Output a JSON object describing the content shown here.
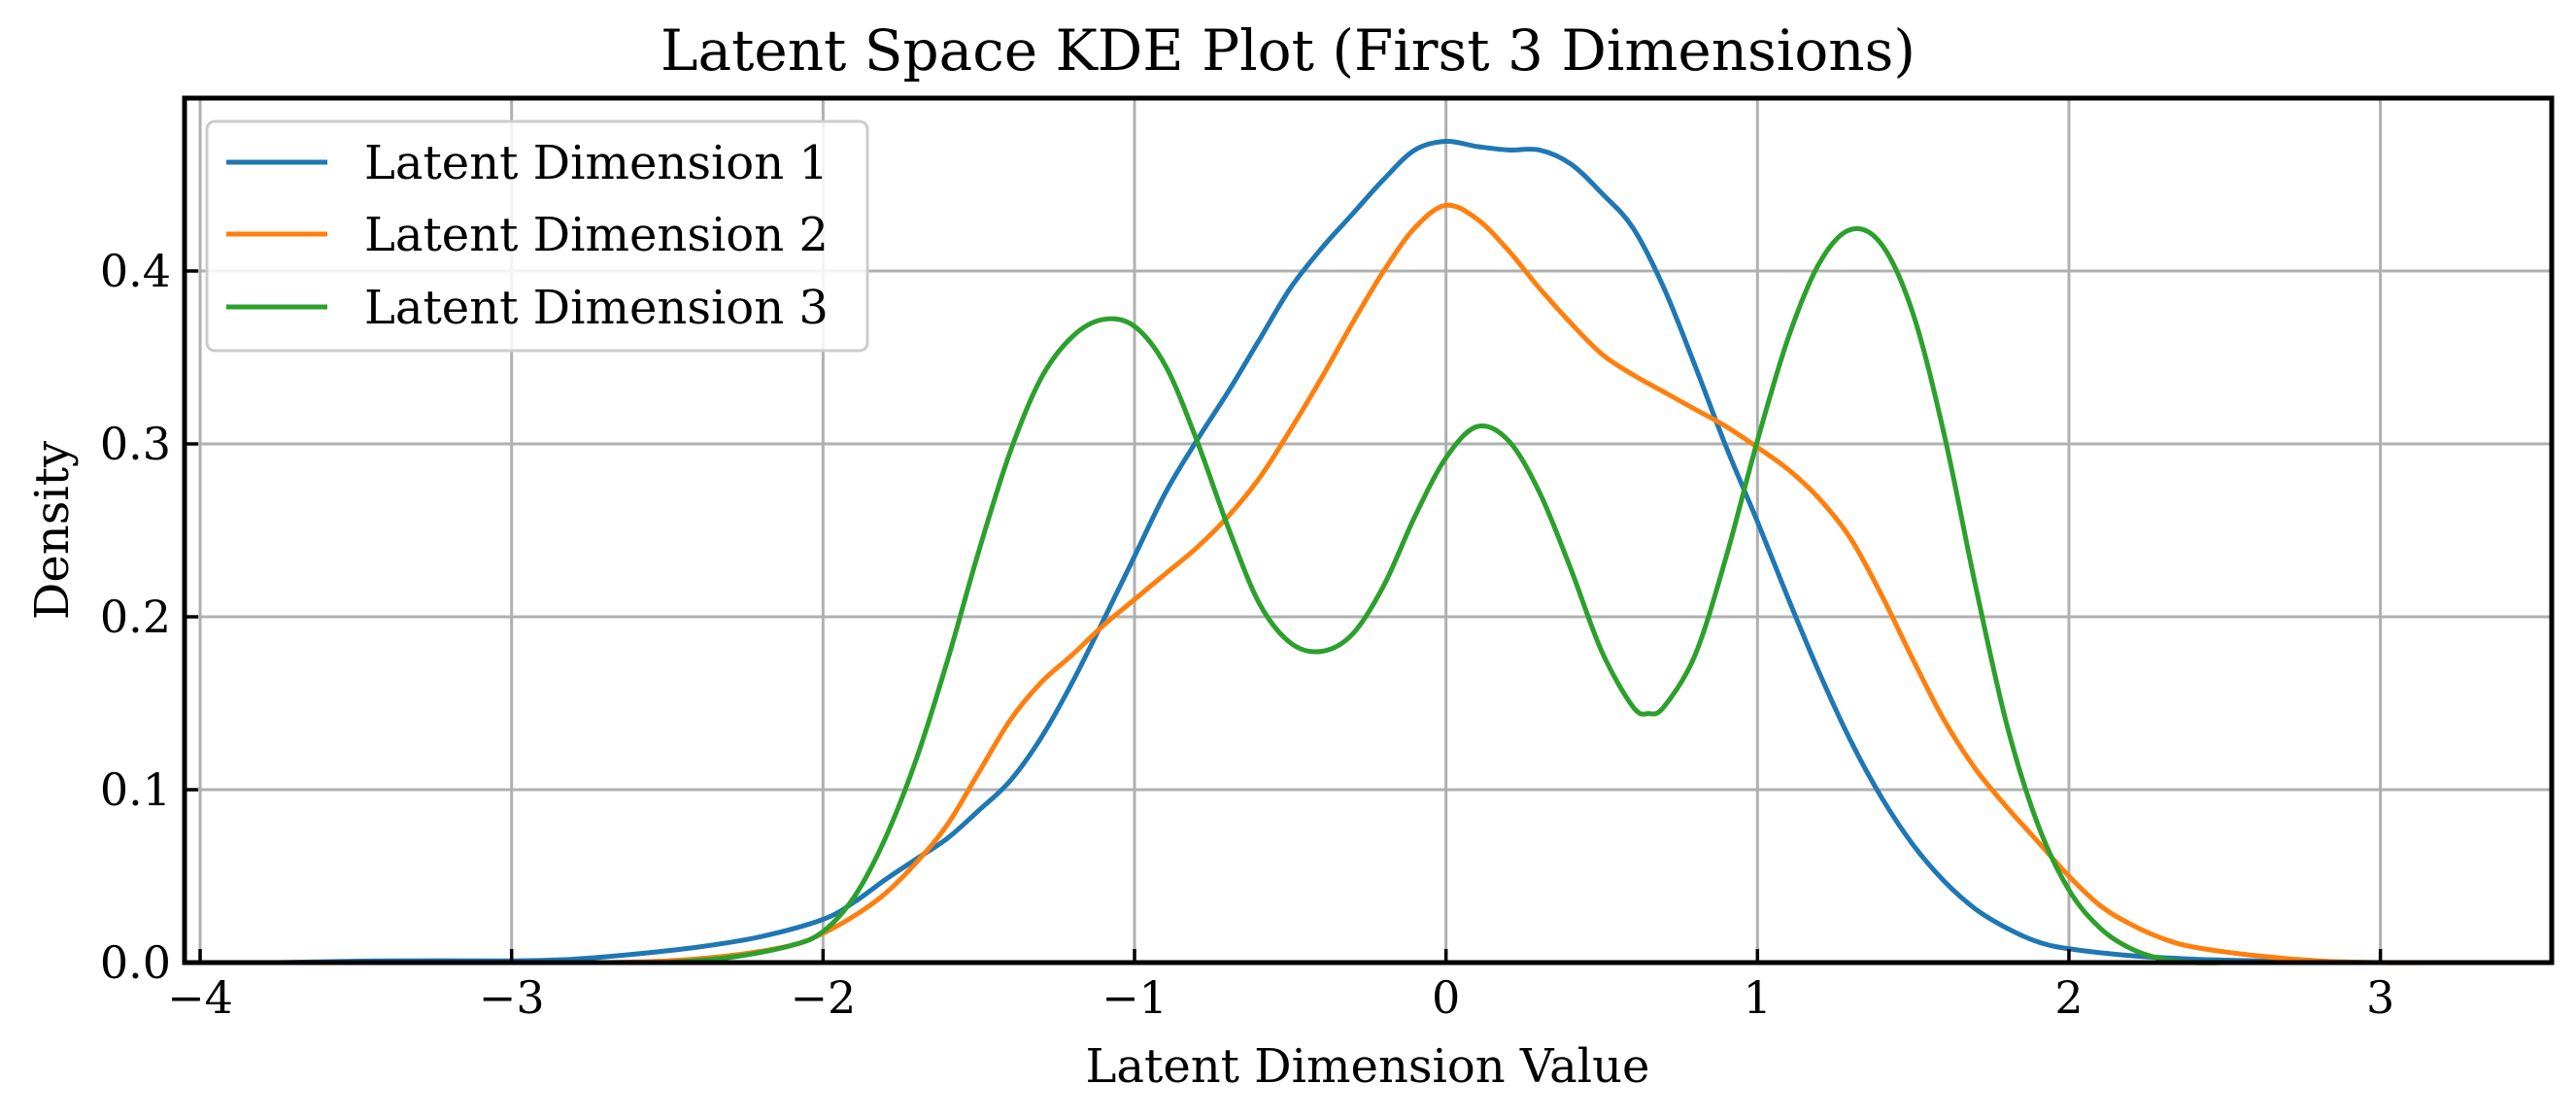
{
  "chart_data": {
    "type": "line",
    "title": "Latent Space KDE Plot (First 3 Dimensions)",
    "xlabel": "Latent Dimension Value",
    "ylabel": "Density",
    "xlim": [
      -4.05,
      3.55
    ],
    "ylim": [
      0.0,
      0.5
    ],
    "x_ticks": [
      -4,
      -3,
      -2,
      -1,
      0,
      1,
      2,
      3
    ],
    "x_tick_labels": [
      "−4",
      "−3",
      "−2",
      "−1",
      "0",
      "1",
      "2",
      "3"
    ],
    "y_ticks": [
      0.0,
      0.1,
      0.2,
      0.3,
      0.4
    ],
    "y_tick_labels": [
      "0.0",
      "0.1",
      "0.2",
      "0.3",
      "0.4"
    ],
    "grid": true,
    "legend_position": "top-left",
    "series": [
      {
        "name": "Latent Dimension 1",
        "color": "#1f77b4",
        "points": [
          [
            -3.75,
            0.0
          ],
          [
            -3.4,
            0.001
          ],
          [
            -3.0,
            0.001
          ],
          [
            -2.8,
            0.002
          ],
          [
            -2.6,
            0.005
          ],
          [
            -2.4,
            0.009
          ],
          [
            -2.2,
            0.015
          ],
          [
            -2.0,
            0.025
          ],
          [
            -1.9,
            0.035
          ],
          [
            -1.8,
            0.048
          ],
          [
            -1.7,
            0.06
          ],
          [
            -1.6,
            0.072
          ],
          [
            -1.5,
            0.088
          ],
          [
            -1.4,
            0.105
          ],
          [
            -1.3,
            0.13
          ],
          [
            -1.2,
            0.162
          ],
          [
            -1.1,
            0.198
          ],
          [
            -1.0,
            0.235
          ],
          [
            -0.9,
            0.272
          ],
          [
            -0.8,
            0.302
          ],
          [
            -0.7,
            0.33
          ],
          [
            -0.6,
            0.36
          ],
          [
            -0.5,
            0.39
          ],
          [
            -0.4,
            0.413
          ],
          [
            -0.3,
            0.433
          ],
          [
            -0.2,
            0.453
          ],
          [
            -0.1,
            0.47
          ],
          [
            0.0,
            0.475
          ],
          [
            0.1,
            0.472
          ],
          [
            0.2,
            0.47
          ],
          [
            0.3,
            0.47
          ],
          [
            0.4,
            0.462
          ],
          [
            0.5,
            0.445
          ],
          [
            0.6,
            0.425
          ],
          [
            0.7,
            0.39
          ],
          [
            0.8,
            0.345
          ],
          [
            0.9,
            0.298
          ],
          [
            1.0,
            0.255
          ],
          [
            1.1,
            0.21
          ],
          [
            1.2,
            0.167
          ],
          [
            1.3,
            0.128
          ],
          [
            1.4,
            0.095
          ],
          [
            1.5,
            0.068
          ],
          [
            1.6,
            0.047
          ],
          [
            1.7,
            0.031
          ],
          [
            1.8,
            0.02
          ],
          [
            1.9,
            0.012
          ],
          [
            2.0,
            0.008
          ],
          [
            2.2,
            0.004
          ],
          [
            2.4,
            0.002
          ],
          [
            2.6,
            0.001
          ],
          [
            2.8,
            0.0
          ]
        ]
      },
      {
        "name": "Latent Dimension 2",
        "color": "#ff7f0e",
        "points": [
          [
            -2.7,
            0.0
          ],
          [
            -2.5,
            0.001
          ],
          [
            -2.3,
            0.004
          ],
          [
            -2.1,
            0.01
          ],
          [
            -2.0,
            0.017
          ],
          [
            -1.9,
            0.027
          ],
          [
            -1.8,
            0.04
          ],
          [
            -1.7,
            0.058
          ],
          [
            -1.6,
            0.08
          ],
          [
            -1.5,
            0.11
          ],
          [
            -1.4,
            0.14
          ],
          [
            -1.3,
            0.162
          ],
          [
            -1.2,
            0.178
          ],
          [
            -1.1,
            0.195
          ],
          [
            -1.0,
            0.21
          ],
          [
            -0.9,
            0.225
          ],
          [
            -0.8,
            0.24
          ],
          [
            -0.7,
            0.258
          ],
          [
            -0.6,
            0.28
          ],
          [
            -0.5,
            0.308
          ],
          [
            -0.4,
            0.338
          ],
          [
            -0.3,
            0.37
          ],
          [
            -0.2,
            0.4
          ],
          [
            -0.1,
            0.425
          ],
          [
            0.0,
            0.438
          ],
          [
            0.1,
            0.43
          ],
          [
            0.2,
            0.412
          ],
          [
            0.3,
            0.39
          ],
          [
            0.4,
            0.37
          ],
          [
            0.5,
            0.352
          ],
          [
            0.6,
            0.34
          ],
          [
            0.7,
            0.33
          ],
          [
            0.8,
            0.32
          ],
          [
            0.9,
            0.31
          ],
          [
            1.0,
            0.298
          ],
          [
            1.1,
            0.285
          ],
          [
            1.2,
            0.268
          ],
          [
            1.3,
            0.245
          ],
          [
            1.4,
            0.212
          ],
          [
            1.5,
            0.175
          ],
          [
            1.6,
            0.14
          ],
          [
            1.7,
            0.112
          ],
          [
            1.8,
            0.09
          ],
          [
            1.9,
            0.07
          ],
          [
            2.0,
            0.05
          ],
          [
            2.1,
            0.033
          ],
          [
            2.2,
            0.022
          ],
          [
            2.3,
            0.014
          ],
          [
            2.4,
            0.009
          ],
          [
            2.6,
            0.004
          ],
          [
            2.8,
            0.001
          ],
          [
            3.0,
            0.0
          ],
          [
            3.2,
            0.0
          ]
        ]
      },
      {
        "name": "Latent Dimension 3",
        "color": "#2ca02c",
        "points": [
          [
            -2.5,
            0.0
          ],
          [
            -2.3,
            0.003
          ],
          [
            -2.1,
            0.01
          ],
          [
            -2.0,
            0.018
          ],
          [
            -1.9,
            0.038
          ],
          [
            -1.8,
            0.072
          ],
          [
            -1.7,
            0.118
          ],
          [
            -1.6,
            0.175
          ],
          [
            -1.5,
            0.238
          ],
          [
            -1.4,
            0.295
          ],
          [
            -1.3,
            0.338
          ],
          [
            -1.2,
            0.362
          ],
          [
            -1.1,
            0.372
          ],
          [
            -1.0,
            0.368
          ],
          [
            -0.9,
            0.345
          ],
          [
            -0.8,
            0.302
          ],
          [
            -0.7,
            0.252
          ],
          [
            -0.6,
            0.208
          ],
          [
            -0.5,
            0.185
          ],
          [
            -0.4,
            0.18
          ],
          [
            -0.3,
            0.19
          ],
          [
            -0.2,
            0.218
          ],
          [
            -0.1,
            0.258
          ],
          [
            0.0,
            0.292
          ],
          [
            0.1,
            0.31
          ],
          [
            0.2,
            0.302
          ],
          [
            0.3,
            0.272
          ],
          [
            0.4,
            0.228
          ],
          [
            0.5,
            0.18
          ],
          [
            0.6,
            0.148
          ],
          [
            0.65,
            0.144
          ],
          [
            0.7,
            0.148
          ],
          [
            0.8,
            0.178
          ],
          [
            0.9,
            0.235
          ],
          [
            1.0,
            0.302
          ],
          [
            1.1,
            0.362
          ],
          [
            1.2,
            0.405
          ],
          [
            1.3,
            0.424
          ],
          [
            1.4,
            0.415
          ],
          [
            1.5,
            0.375
          ],
          [
            1.6,
            0.305
          ],
          [
            1.7,
            0.218
          ],
          [
            1.8,
            0.138
          ],
          [
            1.9,
            0.08
          ],
          [
            2.0,
            0.042
          ],
          [
            2.1,
            0.02
          ],
          [
            2.2,
            0.008
          ],
          [
            2.3,
            0.002
          ],
          [
            2.4,
            0.0
          ],
          [
            2.5,
            0.0
          ]
        ]
      }
    ]
  }
}
